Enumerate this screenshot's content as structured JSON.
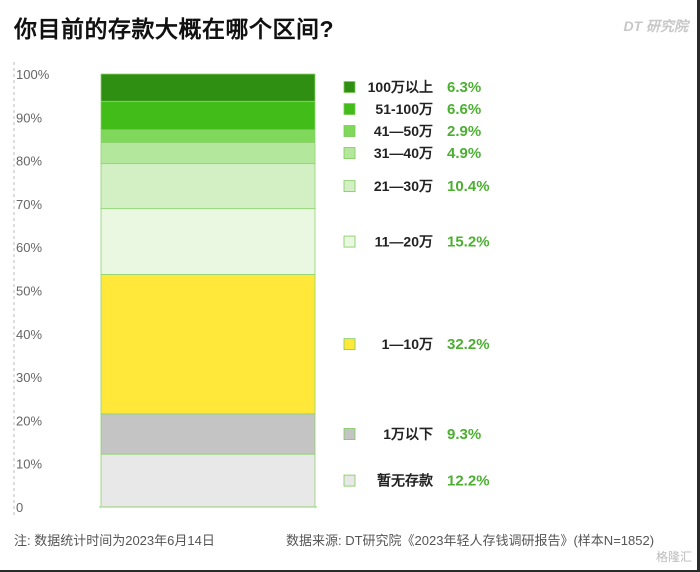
{
  "title": "你目前的存款大概在哪个区间?",
  "brand": "DT 研究院",
  "footer": {
    "note": "注: 数据统计时间为2023年6月14日",
    "source": "数据来源: DT研究院《2023年轻人存钱调研报告》(样本N=1852)"
  },
  "watermark": "格隆汇",
  "chart_data": {
    "type": "bar",
    "stacked": true,
    "title": "你目前的存款大概在哪个区间?",
    "ylim": [
      0,
      100
    ],
    "yticks": [
      "0",
      "10%",
      "20%",
      "30%",
      "40%",
      "50%",
      "60%",
      "70%",
      "80%",
      "90%",
      "100%"
    ],
    "grid": false,
    "legend_position": "right",
    "series": [
      {
        "name": "暂无存款",
        "value": 12.2,
        "label": "12.2%",
        "color": "#e8e8e8"
      },
      {
        "name": "1万以下",
        "value": 9.3,
        "label": "9.3%",
        "color": "#c4c4c4"
      },
      {
        "name": "1—10万",
        "value": 32.2,
        "label": "32.2%",
        "color": "#ffe83a"
      },
      {
        "name": "11—20万",
        "value": 15.2,
        "label": "15.2%",
        "color": "#eaf8e2"
      },
      {
        "name": "21—30万",
        "value": 10.4,
        "label": "10.4%",
        "color": "#d2f0c4"
      },
      {
        "name": "31—40万",
        "value": 4.9,
        "label": "4.9%",
        "color": "#b3e89c"
      },
      {
        "name": "41—50万",
        "value": 2.9,
        "label": "2.9%",
        "color": "#7fd85a"
      },
      {
        "name": "51-100万",
        "value": 6.6,
        "label": "6.6%",
        "color": "#42bc18"
      },
      {
        "name": "100万以上",
        "value": 6.3,
        "label": "6.3%",
        "color": "#2f8f12"
      }
    ]
  }
}
